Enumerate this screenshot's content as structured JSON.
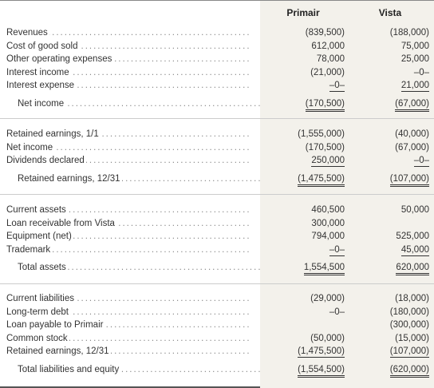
{
  "header": {
    "col1": "Primair",
    "col2": "Vista"
  },
  "sections": [
    {
      "rows": [
        {
          "label": "Revenues",
          "p": "(839,500)",
          "v": "(188,000)"
        },
        {
          "label": "Cost of good sold",
          "p": "612,000",
          "v": "75,000"
        },
        {
          "label": "Other operating expenses",
          "p": "78,000",
          "v": "25,000"
        },
        {
          "label": "Interest income",
          "p": "(21,000)",
          "v": "–0–"
        },
        {
          "label": "Interest expense",
          "p": "–0–",
          "v": "21,000"
        },
        {
          "label": "Net income",
          "p": "(170,500)",
          "v": "(67,000)",
          "indent": true
        }
      ]
    },
    {
      "rows": [
        {
          "label": "Retained earnings, 1/1",
          "p": "(1,555,000)",
          "v": "(40,000)"
        },
        {
          "label": "Net income",
          "p": "(170,500)",
          "v": "(67,000)"
        },
        {
          "label": "Dividends declared",
          "p": "250,000",
          "v": "–0–"
        },
        {
          "label": "Retained earnings, 12/31",
          "p": "(1,475,500)",
          "v": "(107,000)",
          "indent": true
        }
      ]
    },
    {
      "rows": [
        {
          "label": "Current assets",
          "p": "460,500",
          "v": "50,000"
        },
        {
          "label": "Loan receivable from Vista",
          "p": "300,000",
          "v": ""
        },
        {
          "label": "Equipment (net)",
          "p": "794,000",
          "v": "525,000"
        },
        {
          "label": "Trademark",
          "p": "–0–",
          "v": "45,000"
        },
        {
          "label": "Total assets",
          "p": "1,554,500",
          "v": "620,000",
          "indent": true
        }
      ]
    },
    {
      "rows": [
        {
          "label": "Current liabilities",
          "p": "(29,000)",
          "v": "(18,000)"
        },
        {
          "label": "Long-term debt",
          "p": "–0–",
          "v": "(180,000)"
        },
        {
          "label": "Loan payable to Primair",
          "p": "",
          "v": "(300,000)"
        },
        {
          "label": "Common stock",
          "p": "(50,000)",
          "v": "(15,000)"
        },
        {
          "label": "Retained earnings, 12/31",
          "p": "(1,475,500)",
          "v": "(107,000)"
        },
        {
          "label": "Total liabilities and equity",
          "p": "(1,554,500)",
          "v": "(620,000)",
          "indent": true
        }
      ]
    }
  ]
}
